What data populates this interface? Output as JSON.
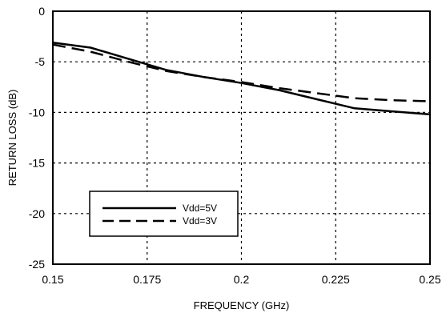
{
  "chart_data": {
    "type": "line",
    "xlabel": "FREQUENCY (GHz)",
    "ylabel": "RETURN LOSS (dB)",
    "xlim": [
      0.15,
      0.25
    ],
    "ylim": [
      -25,
      0
    ],
    "x_ticks": [
      0.15,
      0.175,
      0.2,
      0.225,
      0.25
    ],
    "x_tick_labels": [
      "0.15",
      "0.175",
      "0.2",
      "0.225",
      "0.25"
    ],
    "y_ticks": [
      0,
      -5,
      -10,
      -15,
      -20,
      -25
    ],
    "y_tick_labels": [
      "0",
      "-5",
      "-10",
      "-15",
      "-20",
      "-25"
    ],
    "grid": "dotted",
    "legend_position": "lower-left",
    "series": [
      {
        "name": "Vdd=5V",
        "style": "solid",
        "color": "#000000",
        "x": [
          0.15,
          0.16,
          0.17,
          0.18,
          0.19,
          0.2,
          0.21,
          0.22,
          0.23,
          0.24,
          0.25
        ],
        "y": [
          -3.1,
          -3.6,
          -4.7,
          -5.8,
          -6.5,
          -7.1,
          -7.8,
          -8.7,
          -9.6,
          -9.9,
          -10.2
        ]
      },
      {
        "name": "Vdd=3V",
        "style": "dashed",
        "color": "#000000",
        "x": [
          0.15,
          0.16,
          0.17,
          0.18,
          0.19,
          0.2,
          0.21,
          0.22,
          0.23,
          0.24,
          0.25
        ],
        "y": [
          -3.3,
          -4.0,
          -5.0,
          -5.9,
          -6.5,
          -7.0,
          -7.6,
          -8.1,
          -8.6,
          -8.8,
          -8.9
        ]
      }
    ]
  }
}
